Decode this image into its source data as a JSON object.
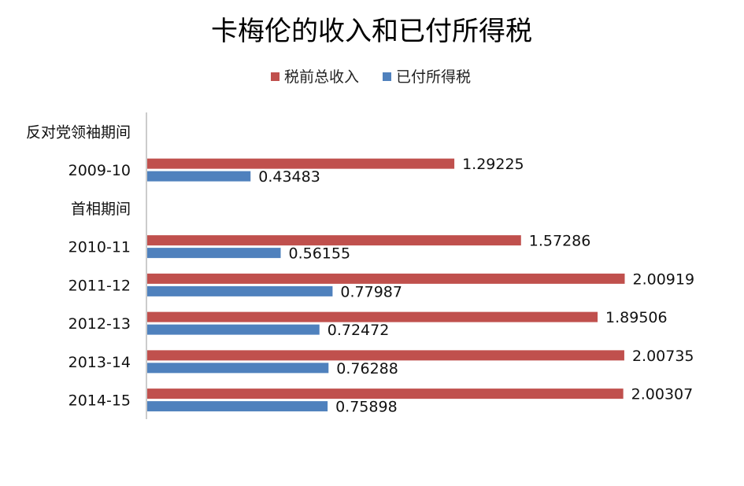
{
  "chart_data": {
    "type": "bar",
    "orientation": "horizontal",
    "title": "卡梅伦的收入和已付所得税",
    "categories": [
      "反对党领袖期间",
      "2009-10",
      "首相期间",
      "2010-11",
      "2011-12",
      "2012-13",
      "2013-14",
      "2014-15"
    ],
    "series": [
      {
        "name": "税前总收入",
        "color": "#C0504D",
        "values": [
          null,
          1.29225,
          null,
          1.57286,
          2.00919,
          1.89506,
          2.00735,
          2.00307
        ]
      },
      {
        "name": "已付所得税",
        "color": "#4F81BD",
        "values": [
          null,
          0.43483,
          null,
          0.56155,
          0.77987,
          0.72472,
          0.76288,
          0.75898
        ]
      }
    ],
    "xlim": [
      0,
      2.15
    ],
    "grid": false,
    "legend_position": "top"
  }
}
